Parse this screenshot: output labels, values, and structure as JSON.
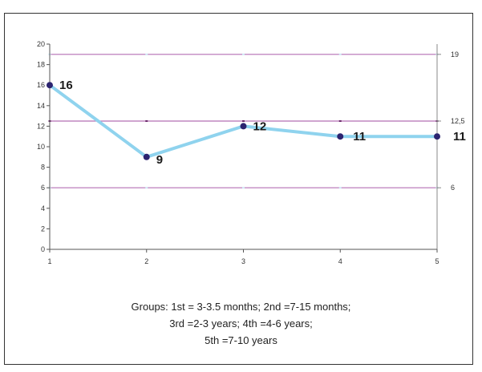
{
  "chart_data": {
    "type": "line",
    "categories": [
      "1",
      "2",
      "3",
      "4",
      "5"
    ],
    "series": [
      {
        "values": [
          16,
          9,
          12,
          11,
          11
        ],
        "color": "#8fd3ee"
      }
    ],
    "data_labels": [
      "16",
      "9",
      "12",
      "11",
      "11"
    ],
    "ylim": [
      0,
      20
    ],
    "yticks": [
      "0",
      "2",
      "4",
      "6",
      "8",
      "10",
      "12",
      "14",
      "16",
      "18",
      "20"
    ],
    "reference_lines": [
      {
        "value": 19,
        "label": "19",
        "color": "#b46fb4"
      },
      {
        "value": 12.5,
        "label": "12,5",
        "color": "#b46fb4"
      },
      {
        "value": 6,
        "label": "6",
        "color": "#b46fb4"
      }
    ],
    "marker_color": "#2c2470",
    "grid": false,
    "legend": "none"
  },
  "caption": {
    "line1": "Groups: 1st = 3-3.5 months; 2nd =7-15 months;",
    "line2": "3rd =2-3 years; 4th =4-6 years;",
    "line3": "5th =7-10 years"
  }
}
